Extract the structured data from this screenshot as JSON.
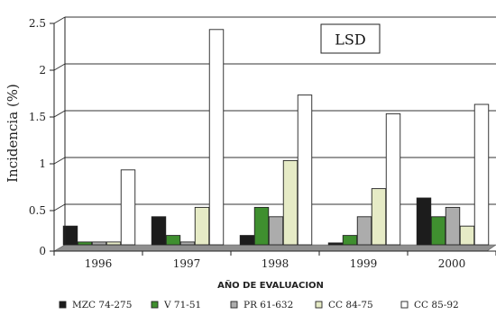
{
  "chart_data": {
    "type": "bar",
    "title": "LSD",
    "xlabel": "AÑO DE EVALUACION",
    "ylabel": "Incidencia (%)",
    "ylim": [
      0,
      2.5
    ],
    "yticks": [
      "0",
      "0.5",
      "1",
      "1.5",
      "2",
      "2.5"
    ],
    "categories": [
      "1996",
      "1997",
      "1998",
      "1999",
      "2000"
    ],
    "grid": true,
    "legend_position": "bottom",
    "series": [
      {
        "name": "MZC 74-275",
        "color": "#1c1c1c",
        "values": [
          0.2,
          0.3,
          0.1,
          0.02,
          0.5
        ]
      },
      {
        "name": "V 71-51",
        "color": "#3f8f2f",
        "values": [
          0.03,
          0.1,
          0.4,
          0.1,
          0.3
        ]
      },
      {
        "name": "PR 61-632",
        "color": "#acacac",
        "values": [
          0.03,
          0.03,
          0.3,
          0.3,
          0.4
        ]
      },
      {
        "name": "CC 84-75",
        "color": "#e6ebc6",
        "values": [
          0.03,
          0.4,
          0.9,
          0.6,
          0.2
        ]
      },
      {
        "name": "CC 85-92",
        "color": "#ffffff",
        "values": [
          0.8,
          2.3,
          1.6,
          1.4,
          1.5
        ]
      }
    ]
  }
}
